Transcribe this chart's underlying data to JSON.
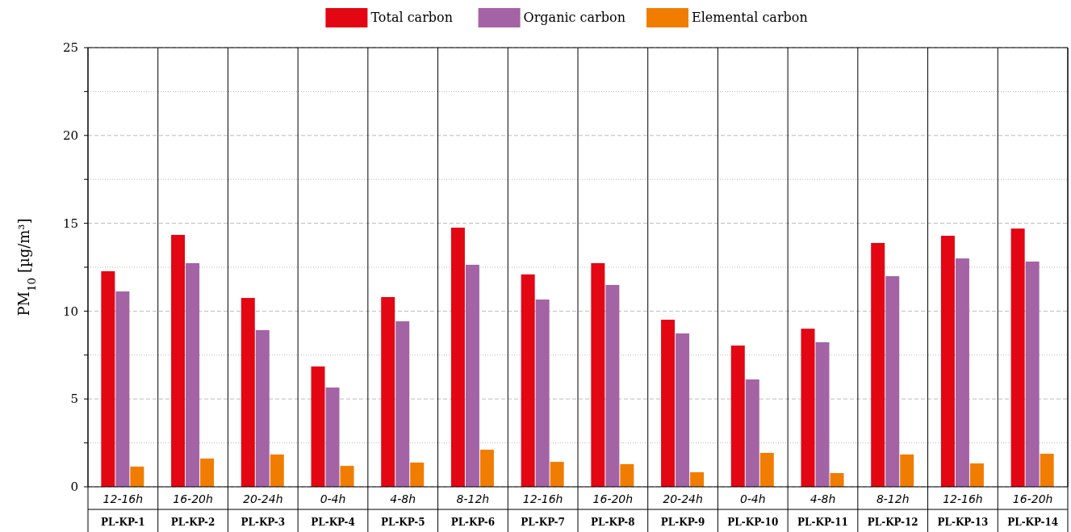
{
  "chart_data": {
    "type": "bar",
    "categories": [
      "12-16h\nPL-KP-1",
      "16-20h\nPL-KP-2",
      "20-24h\nPL-KP-3",
      "0-4h\nPL-KP-4",
      "4-8h\nPL-KP-5",
      "8-12h\nPL-KP-6",
      "12-16h\nPL-KP-7",
      "16-20h\nPL-KP-8",
      "20-24h\nPL-KP-9",
      "0-4h\nPL-KP-10",
      "4-8h\nPL-KP-11",
      "8-12h\nPL-KP-12",
      "12-16h\nPL-KP-13",
      "16-20h\nPL-KP-14"
    ],
    "series": [
      {
        "name": "Total carbon",
        "color": "#e30613",
        "values": [
          12.27,
          14.34,
          10.75,
          6.85,
          10.8,
          14.75,
          12.09,
          12.73,
          9.51,
          8.04,
          9.0,
          13.88,
          14.29,
          14.7
        ]
      },
      {
        "name": "Organic carbon",
        "color": "#a463a5",
        "values": [
          11.12,
          12.73,
          8.92,
          5.65,
          9.42,
          12.64,
          10.66,
          11.49,
          8.73,
          6.11,
          8.23,
          11.99,
          13.0,
          12.82
        ]
      },
      {
        "name": "Elemental carbon",
        "color": "#f07d00",
        "values": [
          1.15,
          1.61,
          1.84,
          1.19,
          1.38,
          2.11,
          1.42,
          1.29,
          0.83,
          1.93,
          0.78,
          1.84,
          1.33,
          1.88
        ]
      }
    ],
    "ylabel": "PM$_{10}$ [µg/m³]",
    "ylim": [
      0,
      25
    ],
    "yticks": [
      0,
      {
        "value": 2.5,
        "label": null
      },
      5,
      {
        "value": 7.5,
        "label": null
      },
      10,
      {
        "value": 12.5,
        "label": null
      },
      15,
      {
        "value": 17.5,
        "label": null
      },
      20,
      {
        "value": 22.5,
        "label": null
      },
      25
    ],
    "grid": true,
    "legend": "top"
  }
}
